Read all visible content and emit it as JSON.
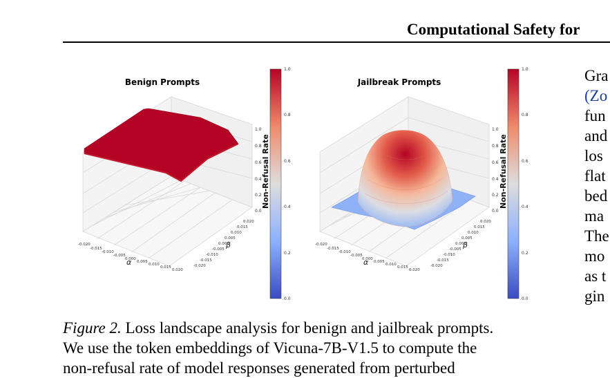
{
  "header": {
    "title": "Computational Safety for"
  },
  "figure": {
    "plots": [
      {
        "title": "Benign Prompts",
        "zlabel": "Non-Refusal Rate",
        "xlabel": "α",
        "ylabel": "β",
        "x_ticks": [
          "-0.020",
          "-0.015",
          "-0.010",
          "-0.005",
          "0.000",
          "0.005",
          "0.010",
          "0.015",
          "0.020"
        ],
        "y_ticks": [
          "0.020",
          "0.015",
          "0.010",
          "0.005",
          "0.000",
          "-0.005",
          "-0.010",
          "-0.015",
          "-0.020"
        ],
        "z_ticks": [
          "1.0",
          "0.8",
          "0.6",
          "0.4",
          "0.2",
          "0.0"
        ],
        "colorbar_ticks": [
          "1.0",
          "0.8",
          "0.6",
          "0.4",
          "0.2",
          "0.0"
        ]
      },
      {
        "title": "Jailbreak Prompts",
        "zlabel": "Non-Refusal Rate",
        "xlabel": "α",
        "ylabel": "β",
        "x_ticks": [
          "-0.020",
          "-0.015",
          "-0.010",
          "-0.005",
          "0.000",
          "0.005",
          "0.010",
          "0.015",
          "0.020"
        ],
        "y_ticks": [
          "0.020",
          "0.015",
          "0.010",
          "0.005",
          "0.000",
          "-0.005",
          "-0.010",
          "-0.015",
          "-0.020"
        ],
        "z_ticks": [
          "1.0",
          "0.8",
          "0.6",
          "0.4",
          "0.2",
          "0.0"
        ],
        "colorbar_ticks": [
          "1.0",
          "0.8",
          "0.6",
          "0.4",
          "0.2",
          "0.0"
        ]
      }
    ],
    "colors": {
      "high": "#b40426",
      "mid": "#dddddd",
      "low": "#3b4cc0"
    }
  },
  "caption": {
    "label": "Figure 2.",
    "line1": "Loss landscape analysis for benign and jailbreak prompts.",
    "line2": "We use the token embeddings of Vicuna-7B-V1.5 to compute the",
    "line3": "non-refusal rate of model responses generated from perturbed"
  },
  "right_column": [
    "Gra",
    "(Zo",
    "fun",
    "and",
    "los",
    "flat",
    "bed",
    "ma",
    "The",
    "mo",
    "as t",
    "gin"
  ]
}
